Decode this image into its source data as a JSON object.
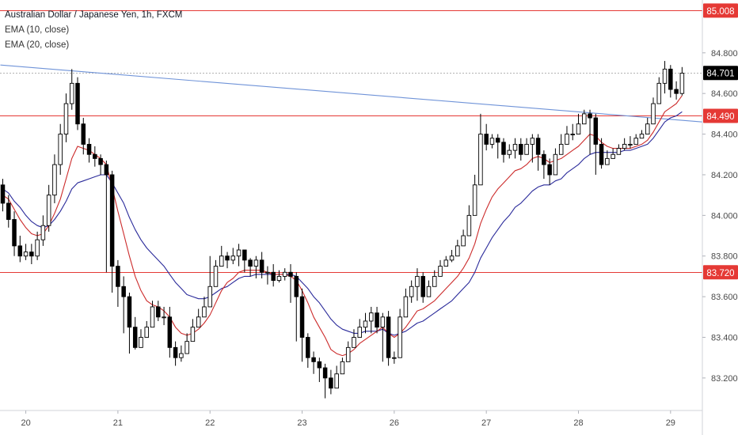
{
  "legend": {
    "title": "Australian Dollar / Japanese Yen, 1h, FXCM",
    "ema10": "EMA (10, close)",
    "ema20": "EMA (20, close)"
  },
  "colors": {
    "up_candle": "#ffffff",
    "down_candle": "#000000",
    "ema10": "#cc2b2b",
    "ema20": "#2a2a9a",
    "horizontal_line": "#e53935",
    "trendline": "#6f93d8",
    "price_label": "#e53935",
    "current_label": "#000000"
  },
  "chart_data": {
    "type": "candlestick",
    "symbol": "Australian Dollar / Japanese Yen",
    "timeframe": "1h",
    "source": "FXCM",
    "ylim": [
      83.04,
      85.06
    ],
    "y_ticks": [
      "84.800",
      "84.600",
      "84.400",
      "84.200",
      "84.000",
      "83.800",
      "83.600",
      "83.400",
      "83.200"
    ],
    "y_tick_values": [
      84.8,
      84.6,
      84.4,
      84.2,
      84.0,
      83.8,
      83.6,
      83.4,
      83.2
    ],
    "x_ticks": [
      "20",
      "21",
      "22",
      "23",
      "26",
      "27",
      "28",
      "29"
    ],
    "x_tick_bar_index": [
      4,
      20,
      36,
      52,
      68,
      84,
      100,
      116
    ],
    "horizontal_levels": [
      {
        "label": "85.008",
        "value": 85.008
      },
      {
        "label": "84.490",
        "value": 84.49
      },
      {
        "label": "83.720",
        "value": 83.72
      }
    ],
    "current_price": {
      "label": "84.701",
      "value": 84.701
    },
    "trendline": {
      "start_bar": 0,
      "start_value": 84.74,
      "end_bar": 124,
      "end_value": 84.46
    },
    "candles": {
      "open": [
        84.15,
        84.06,
        83.98,
        83.85,
        83.8,
        83.82,
        83.8,
        83.88,
        83.95,
        84.1,
        84.25,
        84.4,
        84.55,
        84.65,
        84.45,
        84.35,
        84.3,
        84.28,
        84.25,
        84.2,
        83.75,
        83.65,
        83.6,
        83.45,
        83.35,
        83.4,
        83.45,
        83.55,
        83.5,
        83.5,
        83.35,
        83.3,
        83.32,
        83.38,
        83.45,
        83.5,
        83.55,
        83.65,
        83.75,
        83.8,
        83.78,
        83.8,
        83.83,
        83.78,
        83.75,
        83.78,
        83.72,
        83.72,
        83.68,
        83.7,
        83.72,
        83.7,
        83.6,
        83.4,
        83.3,
        83.28,
        83.25,
        83.2,
        83.15,
        83.22,
        83.28,
        83.35,
        83.4,
        83.45,
        83.48,
        83.52,
        83.45,
        83.5,
        83.3,
        83.3,
        83.5,
        83.6,
        83.65,
        83.7,
        83.6,
        83.65,
        83.7,
        83.75,
        83.78,
        83.8,
        83.85,
        83.9,
        84.0,
        84.15,
        84.4,
        84.35,
        84.38,
        84.36,
        84.3,
        84.32,
        84.35,
        84.3,
        84.35,
        84.38,
        84.3,
        84.25,
        84.2,
        84.3,
        84.35,
        84.4,
        84.4,
        84.45,
        84.5,
        84.48,
        84.35,
        84.25,
        84.28,
        84.3,
        84.33,
        84.35,
        84.35,
        84.38,
        84.4,
        84.45,
        84.55,
        84.65,
        84.72,
        84.62,
        84.6
      ],
      "close": [
        84.06,
        83.98,
        83.85,
        83.8,
        83.82,
        83.8,
        83.88,
        83.95,
        84.1,
        84.25,
        84.4,
        84.55,
        84.65,
        84.45,
        84.35,
        84.3,
        84.28,
        84.25,
        84.2,
        83.75,
        83.65,
        83.6,
        83.45,
        83.35,
        83.4,
        83.45,
        83.55,
        83.5,
        83.5,
        83.35,
        83.3,
        83.32,
        83.38,
        83.45,
        83.5,
        83.55,
        83.65,
        83.75,
        83.8,
        83.78,
        83.8,
        83.83,
        83.78,
        83.75,
        83.78,
        83.72,
        83.72,
        83.68,
        83.7,
        83.72,
        83.7,
        83.6,
        83.4,
        83.3,
        83.28,
        83.25,
        83.2,
        83.15,
        83.22,
        83.28,
        83.35,
        83.4,
        83.45,
        83.48,
        83.52,
        83.45,
        83.5,
        83.3,
        83.3,
        83.5,
        83.6,
        83.65,
        83.7,
        83.6,
        83.65,
        83.7,
        83.75,
        83.78,
        83.8,
        83.85,
        83.9,
        84.0,
        84.15,
        84.4,
        84.35,
        84.38,
        84.36,
        84.3,
        84.32,
        84.35,
        84.3,
        84.35,
        84.38,
        84.3,
        84.25,
        84.2,
        84.3,
        84.35,
        84.4,
        84.4,
        84.45,
        84.5,
        84.48,
        84.35,
        84.25,
        84.28,
        84.3,
        84.33,
        84.35,
        84.35,
        84.38,
        84.4,
        84.45,
        84.55,
        84.65,
        84.72,
        84.62,
        84.6,
        84.7
      ],
      "high": [
        84.18,
        84.1,
        84.02,
        83.9,
        83.86,
        83.86,
        83.92,
        84.0,
        84.15,
        84.3,
        84.45,
        84.6,
        84.72,
        84.68,
        84.48,
        84.38,
        84.34,
        84.3,
        84.27,
        84.22,
        83.78,
        83.7,
        83.62,
        83.5,
        83.44,
        83.48,
        83.58,
        83.58,
        83.55,
        83.55,
        83.38,
        83.36,
        83.42,
        83.49,
        83.54,
        83.6,
        83.8,
        83.78,
        83.85,
        83.82,
        83.84,
        83.86,
        83.82,
        83.79,
        83.8,
        83.82,
        83.75,
        83.76,
        83.73,
        83.74,
        83.76,
        83.72,
        83.64,
        83.42,
        83.33,
        83.3,
        83.27,
        83.24,
        83.26,
        83.3,
        83.38,
        83.44,
        83.49,
        83.52,
        83.55,
        83.55,
        83.52,
        83.53,
        83.33,
        83.54,
        83.64,
        83.68,
        83.74,
        83.72,
        83.68,
        83.73,
        83.78,
        83.8,
        83.83,
        83.88,
        83.93,
        84.05,
        84.2,
        84.5,
        84.45,
        84.4,
        84.4,
        84.38,
        84.35,
        84.38,
        84.38,
        84.38,
        84.4,
        84.4,
        84.32,
        84.28,
        84.33,
        84.4,
        84.44,
        84.45,
        84.5,
        84.52,
        84.52,
        84.5,
        84.38,
        84.32,
        84.33,
        84.35,
        84.38,
        84.39,
        84.4,
        84.42,
        84.48,
        84.58,
        84.68,
        84.76,
        84.74,
        84.66,
        84.73
      ],
      "low": [
        84.02,
        83.94,
        83.8,
        83.77,
        83.78,
        83.76,
        83.78,
        83.85,
        83.92,
        84.06,
        84.2,
        84.36,
        84.52,
        84.42,
        84.3,
        84.26,
        84.24,
        84.2,
        83.72,
        83.62,
        83.55,
        83.42,
        83.32,
        83.34,
        83.37,
        83.42,
        83.47,
        83.48,
        83.46,
        83.3,
        83.26,
        83.28,
        83.35,
        83.41,
        83.46,
        83.52,
        83.62,
        83.72,
        83.75,
        83.74,
        83.76,
        83.75,
        83.72,
        83.7,
        83.69,
        83.69,
        83.66,
        83.65,
        83.67,
        83.68,
        83.57,
        83.38,
        83.28,
        83.25,
        83.22,
        83.18,
        83.1,
        83.12,
        83.18,
        83.25,
        83.32,
        83.37,
        83.42,
        83.42,
        83.42,
        83.42,
        83.28,
        83.26,
        83.27,
        83.47,
        83.57,
        83.57,
        83.58,
        83.57,
        83.62,
        83.67,
        83.72,
        83.75,
        83.77,
        83.82,
        83.88,
        83.97,
        84.12,
        84.3,
        84.32,
        84.33,
        84.28,
        84.26,
        84.28,
        84.28,
        84.27,
        84.32,
        84.26,
        84.22,
        84.18,
        84.15,
        84.27,
        84.32,
        84.35,
        84.37,
        84.42,
        84.45,
        84.3,
        84.2,
        84.23,
        84.26,
        84.28,
        84.3,
        84.32,
        84.33,
        84.35,
        84.38,
        84.42,
        84.52,
        84.6,
        84.6,
        84.58,
        84.57,
        84.59
      ]
    },
    "series": [
      {
        "name": "EMA (10, close)",
        "values": [
          84.1,
          84.08,
          84.03,
          83.98,
          83.94,
          83.91,
          83.9,
          83.91,
          83.95,
          84.01,
          84.08,
          84.18,
          84.28,
          84.34,
          84.33,
          84.32,
          84.3,
          84.28,
          84.25,
          84.14,
          84.02,
          83.91,
          83.8,
          83.7,
          83.63,
          83.58,
          83.56,
          83.55,
          83.53,
          83.5,
          83.45,
          83.42,
          83.41,
          83.42,
          83.44,
          83.47,
          83.51,
          83.57,
          83.63,
          83.67,
          83.69,
          83.72,
          83.73,
          83.73,
          83.73,
          83.73,
          83.72,
          83.71,
          83.71,
          83.71,
          83.7,
          83.68,
          83.63,
          83.57,
          83.5,
          83.45,
          83.4,
          83.34,
          83.32,
          83.31,
          83.32,
          83.34,
          83.37,
          83.39,
          83.41,
          83.43,
          83.45,
          83.42,
          83.4,
          83.42,
          83.45,
          83.49,
          83.53,
          83.54,
          83.56,
          83.58,
          83.61,
          83.64,
          83.67,
          83.7,
          83.74,
          83.79,
          83.86,
          83.96,
          84.03,
          84.09,
          84.13,
          84.16,
          84.19,
          84.22,
          84.23,
          84.25,
          84.28,
          84.29,
          84.28,
          84.26,
          84.27,
          84.28,
          84.3,
          84.32,
          84.34,
          84.37,
          84.4,
          84.39,
          84.36,
          84.34,
          84.33,
          84.33,
          84.33,
          84.33,
          84.34,
          84.35,
          84.37,
          84.41,
          84.46,
          84.51,
          84.53,
          84.55,
          84.59
        ]
      },
      {
        "name": "EMA (20, close)",
        "values": [
          84.13,
          84.11,
          84.07,
          84.04,
          84.0,
          83.97,
          83.95,
          83.94,
          83.95,
          83.98,
          84.02,
          84.07,
          84.13,
          84.16,
          84.17,
          84.18,
          84.19,
          84.2,
          84.2,
          84.16,
          84.11,
          84.06,
          83.99,
          83.93,
          83.88,
          83.84,
          83.81,
          83.78,
          83.75,
          83.71,
          83.67,
          83.64,
          83.61,
          83.6,
          83.59,
          83.59,
          83.6,
          83.62,
          83.64,
          83.65,
          83.67,
          83.69,
          83.7,
          83.7,
          83.71,
          83.71,
          83.71,
          83.71,
          83.71,
          83.71,
          83.71,
          83.7,
          83.67,
          83.64,
          83.6,
          83.57,
          83.53,
          83.49,
          83.46,
          83.44,
          83.43,
          83.42,
          83.42,
          83.43,
          83.43,
          83.43,
          83.44,
          83.42,
          83.41,
          83.42,
          83.43,
          83.45,
          83.47,
          83.48,
          83.5,
          83.52,
          83.54,
          83.56,
          83.58,
          83.61,
          83.64,
          83.67,
          83.72,
          83.79,
          83.84,
          83.89,
          83.93,
          83.97,
          84.0,
          84.04,
          84.06,
          84.09,
          84.12,
          84.14,
          84.15,
          84.15,
          84.17,
          84.18,
          84.21,
          84.23,
          84.25,
          84.28,
          84.3,
          84.31,
          84.31,
          84.31,
          84.31,
          84.31,
          84.32,
          84.32,
          84.33,
          84.34,
          84.35,
          84.38,
          84.42,
          84.46,
          84.48,
          84.49,
          84.51
        ]
      }
    ]
  }
}
